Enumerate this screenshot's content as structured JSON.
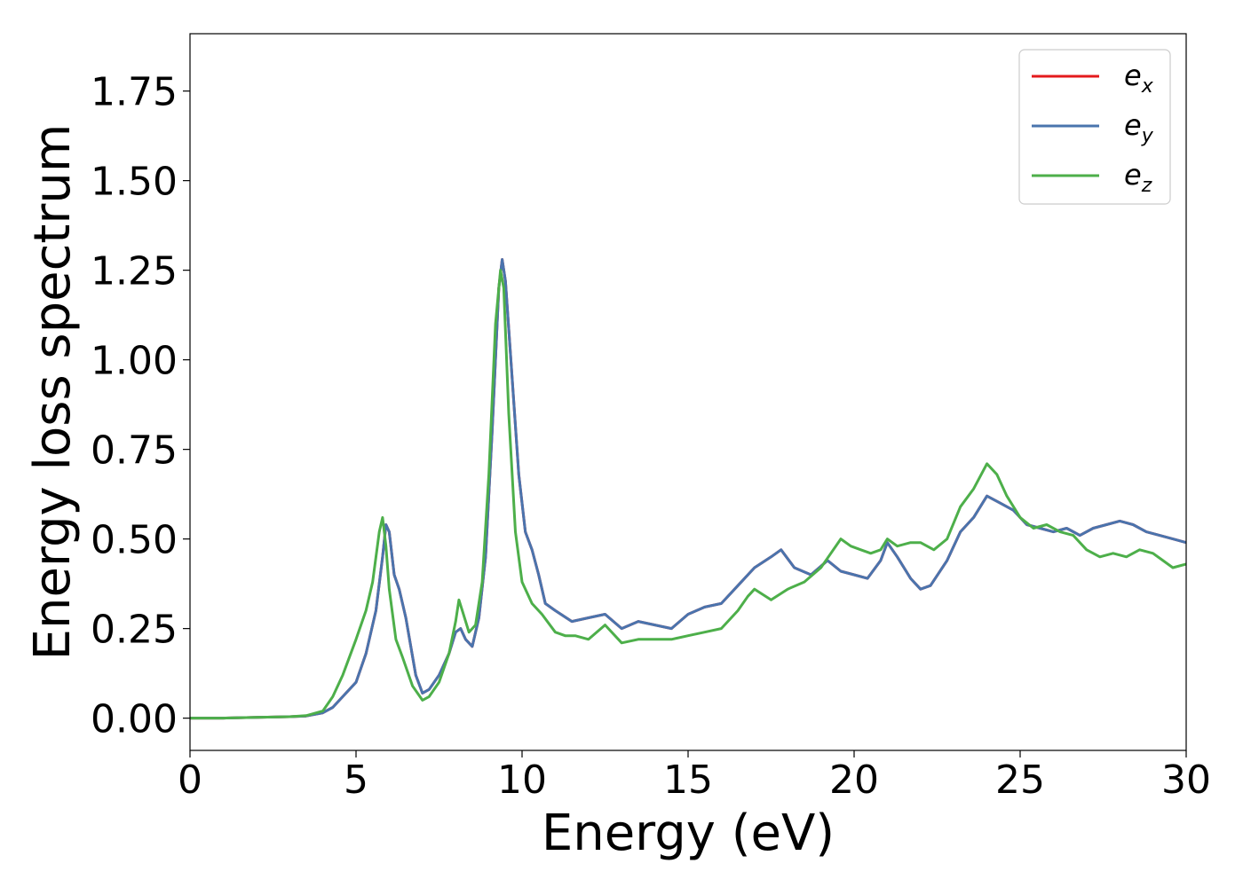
{
  "chart_data": {
    "type": "line",
    "title": "",
    "xlabel": "Energy (eV)",
    "ylabel": "Energy loss spectrum",
    "xlim": [
      0,
      30
    ],
    "ylim": [
      -0.09,
      1.91
    ],
    "xticks": [
      0,
      5,
      10,
      15,
      20,
      25,
      30
    ],
    "xtick_labels": [
      "0",
      "5",
      "10",
      "15",
      "20",
      "25",
      "30"
    ],
    "yticks": [
      0,
      0.25,
      0.5,
      0.75,
      1.0,
      1.25,
      1.5,
      1.75
    ],
    "ytick_labels": [
      "0.00",
      "0.25",
      "0.50",
      "0.75",
      "1.00",
      "1.25",
      "1.50",
      "1.75"
    ],
    "grid": false,
    "legend_position": "top-right",
    "series": [
      {
        "name": "e",
        "subscript": "x",
        "color": "#e41a1c",
        "x": [
          0,
          1,
          2,
          3,
          3.5,
          4,
          4.3,
          4.6,
          5,
          5.3,
          5.6,
          5.8,
          5.9,
          6.0,
          6.15,
          6.3,
          6.5,
          6.8,
          7.0,
          7.2,
          7.5,
          7.8,
          8.0,
          8.15,
          8.3,
          8.5,
          8.7,
          8.9,
          9.1,
          9.3,
          9.4,
          9.5,
          9.7,
          9.9,
          10.1,
          10.3,
          10.5,
          10.7,
          11.0,
          11.5,
          12.0,
          12.5,
          13.0,
          13.5,
          14.0,
          14.5,
          15.0,
          15.5,
          16.0,
          16.5,
          17.0,
          17.5,
          17.8,
          18.2,
          18.7,
          19.2,
          19.6,
          20.0,
          20.4,
          20.8,
          21.0,
          21.3,
          21.7,
          22.0,
          22.3,
          22.8,
          23.2,
          23.6,
          24.0,
          24.4,
          24.8,
          25.2,
          25.6,
          26.0,
          26.4,
          26.8,
          27.2,
          27.6,
          28.0,
          28.4,
          28.8,
          29.2,
          29.6,
          30.0
        ],
        "values": [
          0,
          0,
          0.002,
          0.004,
          0.006,
          0.015,
          0.03,
          0.06,
          0.1,
          0.18,
          0.3,
          0.45,
          0.54,
          0.52,
          0.4,
          0.36,
          0.28,
          0.12,
          0.07,
          0.08,
          0.12,
          0.18,
          0.24,
          0.25,
          0.22,
          0.2,
          0.28,
          0.45,
          0.8,
          1.2,
          1.28,
          1.22,
          0.95,
          0.68,
          0.52,
          0.47,
          0.4,
          0.32,
          0.3,
          0.27,
          0.28,
          0.29,
          0.25,
          0.27,
          0.26,
          0.25,
          0.29,
          0.31,
          0.32,
          0.37,
          0.42,
          0.45,
          0.47,
          0.42,
          0.4,
          0.44,
          0.41,
          0.4,
          0.39,
          0.44,
          0.49,
          0.45,
          0.39,
          0.36,
          0.37,
          0.44,
          0.52,
          0.56,
          0.62,
          0.6,
          0.58,
          0.54,
          0.53,
          0.52,
          0.53,
          0.51,
          0.53,
          0.54,
          0.55,
          0.54,
          0.52,
          0.51,
          0.5,
          0.49
        ]
      },
      {
        "name": "e",
        "subscript": "y",
        "color": "#4a74ad",
        "x": [
          0,
          1,
          2,
          3,
          3.5,
          4,
          4.3,
          4.6,
          5,
          5.3,
          5.6,
          5.8,
          5.9,
          6.0,
          6.15,
          6.3,
          6.5,
          6.8,
          7.0,
          7.2,
          7.5,
          7.8,
          8.0,
          8.15,
          8.3,
          8.5,
          8.7,
          8.9,
          9.1,
          9.3,
          9.4,
          9.5,
          9.7,
          9.9,
          10.1,
          10.3,
          10.5,
          10.7,
          11.0,
          11.5,
          12.0,
          12.5,
          13.0,
          13.5,
          14.0,
          14.5,
          15.0,
          15.5,
          16.0,
          16.5,
          17.0,
          17.5,
          17.8,
          18.2,
          18.7,
          19.2,
          19.6,
          20.0,
          20.4,
          20.8,
          21.0,
          21.3,
          21.7,
          22.0,
          22.3,
          22.8,
          23.2,
          23.6,
          24.0,
          24.4,
          24.8,
          25.2,
          25.6,
          26.0,
          26.4,
          26.8,
          27.2,
          27.6,
          28.0,
          28.4,
          28.8,
          29.2,
          29.6,
          30.0
        ],
        "values": [
          0,
          0,
          0.002,
          0.004,
          0.006,
          0.015,
          0.03,
          0.06,
          0.1,
          0.18,
          0.3,
          0.45,
          0.54,
          0.52,
          0.4,
          0.36,
          0.28,
          0.12,
          0.07,
          0.08,
          0.12,
          0.18,
          0.24,
          0.25,
          0.22,
          0.2,
          0.28,
          0.45,
          0.8,
          1.2,
          1.28,
          1.22,
          0.95,
          0.68,
          0.52,
          0.47,
          0.4,
          0.32,
          0.3,
          0.27,
          0.28,
          0.29,
          0.25,
          0.27,
          0.26,
          0.25,
          0.29,
          0.31,
          0.32,
          0.37,
          0.42,
          0.45,
          0.47,
          0.42,
          0.4,
          0.44,
          0.41,
          0.4,
          0.39,
          0.44,
          0.49,
          0.45,
          0.39,
          0.36,
          0.37,
          0.44,
          0.52,
          0.56,
          0.62,
          0.6,
          0.58,
          0.54,
          0.53,
          0.52,
          0.53,
          0.51,
          0.53,
          0.54,
          0.55,
          0.54,
          0.52,
          0.51,
          0.5,
          0.49
        ]
      },
      {
        "name": "e",
        "subscript": "z",
        "color": "#4daf4a",
        "x": [
          0,
          1,
          2,
          3,
          3.5,
          4,
          4.3,
          4.6,
          5,
          5.3,
          5.5,
          5.7,
          5.8,
          5.9,
          6.0,
          6.2,
          6.4,
          6.7,
          7.0,
          7.2,
          7.5,
          7.8,
          8.0,
          8.1,
          8.2,
          8.4,
          8.6,
          8.8,
          9.0,
          9.2,
          9.35,
          9.45,
          9.6,
          9.8,
          10.0,
          10.3,
          10.6,
          11.0,
          11.3,
          11.6,
          12.0,
          12.5,
          13.0,
          13.5,
          14.0,
          14.5,
          15.0,
          15.5,
          16.0,
          16.5,
          16.8,
          17.0,
          17.5,
          18.0,
          18.5,
          19.0,
          19.3,
          19.6,
          19.9,
          20.2,
          20.5,
          20.8,
          21.0,
          21.3,
          21.7,
          22.0,
          22.4,
          22.8,
          23.2,
          23.6,
          24.0,
          24.3,
          24.6,
          25.0,
          25.4,
          25.8,
          26.2,
          26.6,
          27.0,
          27.4,
          27.8,
          28.2,
          28.6,
          29.0,
          29.3,
          29.6,
          30.0
        ],
        "values": [
          0,
          0,
          0.002,
          0.004,
          0.007,
          0.02,
          0.06,
          0.12,
          0.22,
          0.3,
          0.38,
          0.52,
          0.56,
          0.48,
          0.36,
          0.22,
          0.17,
          0.09,
          0.05,
          0.06,
          0.1,
          0.18,
          0.27,
          0.33,
          0.3,
          0.24,
          0.26,
          0.38,
          0.68,
          1.1,
          1.25,
          1.2,
          0.85,
          0.52,
          0.38,
          0.32,
          0.29,
          0.24,
          0.23,
          0.23,
          0.22,
          0.26,
          0.21,
          0.22,
          0.22,
          0.22,
          0.23,
          0.24,
          0.25,
          0.3,
          0.34,
          0.36,
          0.33,
          0.36,
          0.38,
          0.42,
          0.46,
          0.5,
          0.48,
          0.47,
          0.46,
          0.47,
          0.5,
          0.48,
          0.49,
          0.49,
          0.47,
          0.5,
          0.59,
          0.64,
          0.71,
          0.68,
          0.62,
          0.56,
          0.53,
          0.54,
          0.52,
          0.51,
          0.47,
          0.45,
          0.46,
          0.45,
          0.47,
          0.46,
          0.44,
          0.42,
          0.43
        ]
      }
    ]
  }
}
